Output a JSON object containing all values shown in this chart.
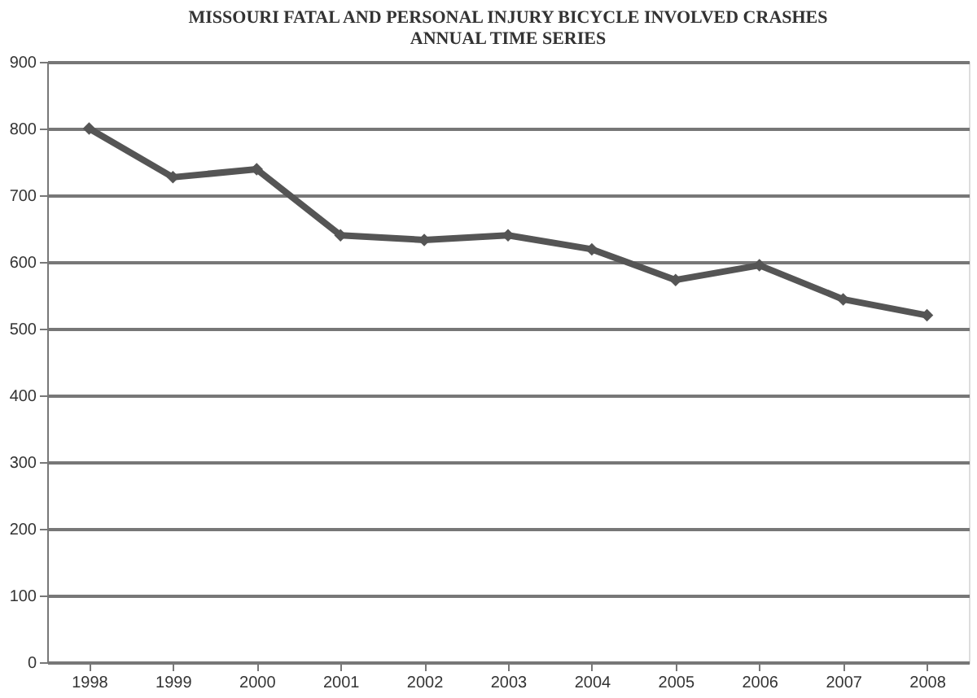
{
  "chart_data": {
    "type": "line",
    "title": [
      "MISSOURI FATAL AND PERSONAL INJURY BICYCLE INVOLVED CRASHES",
      "ANNUAL TIME SERIES"
    ],
    "categories": [
      "1998",
      "1999",
      "2000",
      "2001",
      "2002",
      "2003",
      "2004",
      "2005",
      "2006",
      "2007",
      "2008"
    ],
    "series": [
      {
        "color": "#555555",
        "values": [
          800,
          727,
          739,
          640,
          633,
          640,
          619,
          573,
          595,
          544,
          520
        ]
      }
    ],
    "ylim": [
      0,
      900
    ],
    "yticks": [
      0,
      100,
      200,
      300,
      400,
      500,
      600,
      700,
      800,
      900
    ],
    "grid": "y",
    "marker": "diamond",
    "legend": false
  }
}
